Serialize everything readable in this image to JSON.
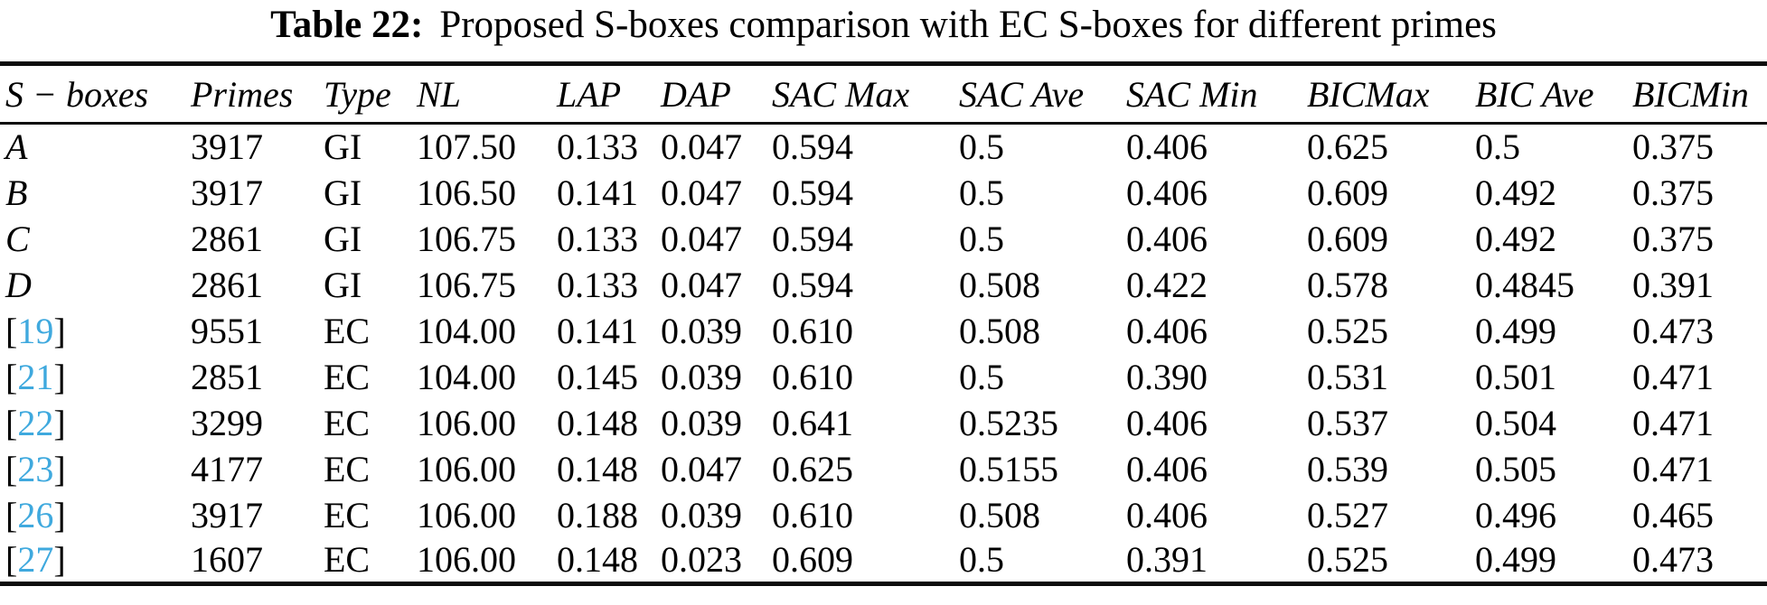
{
  "colors": {
    "citation_blue": "#3FA9DE",
    "rule_black": "#0d0d0d",
    "text_black": "#000000"
  },
  "caption": {
    "label": "Table 22:",
    "text": "Proposed S-boxes comparison with EC S-boxes for different primes"
  },
  "table": {
    "columns": [
      "S − boxes",
      "Primes",
      "Type",
      "NL",
      "LAP",
      "DAP",
      "SAC Max",
      "SAC Ave",
      "SAC Min",
      "BICMax",
      "BIC Ave",
      "BICMin"
    ],
    "rows": [
      {
        "sbox": "A",
        "ref": false,
        "values": [
          "3917",
          "GI",
          "107.50",
          "0.133",
          "0.047",
          "0.594",
          "0.5",
          "0.406",
          "0.625",
          "0.5",
          "0.375"
        ]
      },
      {
        "sbox": "B",
        "ref": false,
        "values": [
          "3917",
          "GI",
          "106.50",
          "0.141",
          "0.047",
          "0.594",
          "0.5",
          "0.406",
          "0.609",
          "0.492",
          "0.375"
        ]
      },
      {
        "sbox": "C",
        "ref": false,
        "values": [
          "2861",
          "GI",
          "106.75",
          "0.133",
          "0.047",
          "0.594",
          "0.5",
          "0.406",
          "0.609",
          "0.492",
          "0.375"
        ]
      },
      {
        "sbox": "D",
        "ref": false,
        "values": [
          "2861",
          "GI",
          "106.75",
          "0.133",
          "0.047",
          "0.594",
          "0.508",
          "0.422",
          "0.578",
          "0.4845",
          "0.391"
        ]
      },
      {
        "sbox": "19",
        "ref": true,
        "values": [
          "9551",
          "EC",
          "104.00",
          "0.141",
          "0.039",
          "0.610",
          "0.508",
          "0.406",
          "0.525",
          "0.499",
          "0.473"
        ]
      },
      {
        "sbox": "21",
        "ref": true,
        "values": [
          "2851",
          "EC",
          "104.00",
          "0.145",
          "0.039",
          "0.610",
          "0.5",
          "0.390",
          "0.531",
          "0.501",
          "0.471"
        ]
      },
      {
        "sbox": "22",
        "ref": true,
        "values": [
          "3299",
          "EC",
          "106.00",
          "0.148",
          "0.039",
          "0.641",
          "0.5235",
          "0.406",
          "0.537",
          "0.504",
          "0.471"
        ]
      },
      {
        "sbox": "23",
        "ref": true,
        "values": [
          "4177",
          "EC",
          "106.00",
          "0.148",
          "0.047",
          "0.625",
          "0.5155",
          "0.406",
          "0.539",
          "0.505",
          "0.471"
        ]
      },
      {
        "sbox": "26",
        "ref": true,
        "values": [
          "3917",
          "EC",
          "106.00",
          "0.188",
          "0.039",
          "0.610",
          "0.508",
          "0.406",
          "0.527",
          "0.496",
          "0.465"
        ]
      },
      {
        "sbox": "27",
        "ref": true,
        "values": [
          "1607",
          "EC",
          "106.00",
          "0.148",
          "0.023",
          "0.609",
          "0.5",
          "0.391",
          "0.525",
          "0.499",
          "0.473"
        ]
      }
    ]
  },
  "chart_data": {
    "type": "table",
    "title": "Table 22: Proposed S-boxes comparison with EC S-boxes for different primes",
    "columns": [
      "S − boxes",
      "Primes",
      "Type",
      "NL",
      "LAP",
      "DAP",
      "SAC Max",
      "SAC Ave",
      "SAC Min",
      "BICMax",
      "BIC Ave",
      "BICMin"
    ]
  }
}
